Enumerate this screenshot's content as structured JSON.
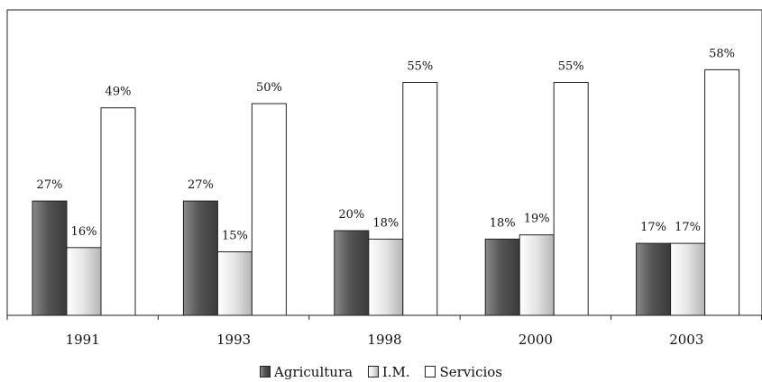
{
  "chart_data": {
    "type": "bar",
    "categories": [
      "1991",
      "1993",
      "1998",
      "2000",
      "2003"
    ],
    "series": [
      {
        "name": "Agricultura",
        "values": [
          27,
          27,
          20,
          18,
          17
        ],
        "labels": [
          "27%",
          "27%",
          "20%",
          "18%",
          "17%"
        ],
        "style": "dark"
      },
      {
        "name": "I.M.",
        "values": [
          16,
          15,
          18,
          19,
          17
        ],
        "labels": [
          "16%",
          "15%",
          "18%",
          "19%",
          "17%"
        ],
        "style": "light"
      },
      {
        "name": "Servicios",
        "values": [
          49,
          50,
          55,
          55,
          58
        ],
        "labels": [
          "49%",
          "50%",
          "55%",
          "55%",
          "58%"
        ],
        "style": "white"
      }
    ],
    "ylim": [
      0,
      65
    ],
    "grid": false,
    "legend_position": "bottom-center"
  },
  "colors": {
    "dark_light": "#8a8a8a",
    "dark_mid": "#555555",
    "dark_deep": "#3a3a3a",
    "light_light": "#ffffff",
    "light_mid": "#e4e4e4",
    "light_deep": "#b4b4b4",
    "white": "#ffffff",
    "outline": "#222222"
  }
}
